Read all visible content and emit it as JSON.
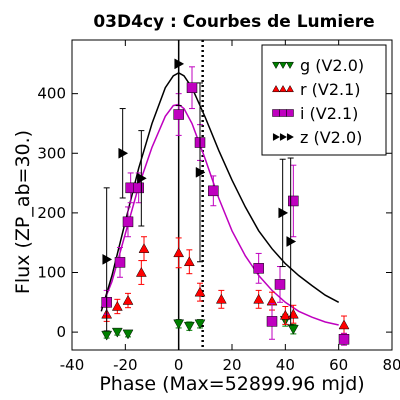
{
  "chart_data": {
    "type": "scatter",
    "title": "03D4cy : Courbes de Lumiere",
    "xlabel": "Phase (Max=52899.96 mjd)",
    "ylabel": "Flux (ZP_ab=30.)",
    "xlim": [
      -40,
      80
    ],
    "ylim": [
      -30,
      490
    ],
    "xticks": [
      -40,
      -20,
      0,
      20,
      40,
      60,
      80
    ],
    "yticks": [
      0,
      100,
      200,
      300,
      400
    ],
    "xtick_labels": [
      "-40",
      "-20",
      "0",
      "20",
      "40",
      "60",
      "80"
    ],
    "ytick_labels": [
      "0",
      "100",
      "200",
      "300",
      "400"
    ],
    "grid": false,
    "legend_position": "top-right",
    "vertical_lines": [
      {
        "x": 0,
        "style": "solid"
      },
      {
        "x": 9,
        "style": "dotted"
      }
    ],
    "series": [
      {
        "name": "g (V2.0)",
        "marker": "triangle-down",
        "color": "#008000",
        "points": [
          {
            "x": -27,
            "y": -5,
            "err": 5
          },
          {
            "x": -23,
            "y": 0,
            "err": 5
          },
          {
            "x": -19,
            "y": -3,
            "err": 5
          },
          {
            "x": 0,
            "y": 14,
            "err": 7
          },
          {
            "x": 4,
            "y": 10,
            "err": 7
          },
          {
            "x": 8,
            "y": 14,
            "err": 7
          },
          {
            "x": 40,
            "y": 20,
            "err": 10
          },
          {
            "x": 43,
            "y": 5,
            "err": 8
          }
        ]
      },
      {
        "name": "r (V2.1)",
        "marker": "triangle-up",
        "color": "#ff0000",
        "points": [
          {
            "x": -27,
            "y": 30,
            "err": 12
          },
          {
            "x": -23,
            "y": 43,
            "err": 12
          },
          {
            "x": -19,
            "y": 53,
            "err": 12
          },
          {
            "x": -14,
            "y": 100,
            "err": 20
          },
          {
            "x": -13,
            "y": 140,
            "err": 20
          },
          {
            "x": 0,
            "y": 133,
            "err": 25
          },
          {
            "x": 4,
            "y": 118,
            "err": 20
          },
          {
            "x": 8,
            "y": 67,
            "err": 15
          },
          {
            "x": 16,
            "y": 55,
            "err": 15
          },
          {
            "x": 30,
            "y": 55,
            "err": 15
          },
          {
            "x": 35,
            "y": 52,
            "err": 15
          },
          {
            "x": 40,
            "y": 28,
            "err": 15
          },
          {
            "x": 43,
            "y": 30,
            "err": 15
          },
          {
            "x": 62,
            "y": 12,
            "err": 15
          }
        ]
      },
      {
        "name": "i (V2.1)",
        "marker": "square",
        "color": "#bf00bf",
        "points": [
          {
            "x": -27,
            "y": 50,
            "err": 20
          },
          {
            "x": -22,
            "y": 117,
            "err": 25
          },
          {
            "x": -19,
            "y": 185,
            "err": 25
          },
          {
            "x": -18,
            "y": 242,
            "err": 25
          },
          {
            "x": -15,
            "y": 242,
            "err": 25
          },
          {
            "x": 0,
            "y": 365,
            "err": 35
          },
          {
            "x": 5,
            "y": 410,
            "err": 35
          },
          {
            "x": 8,
            "y": 318,
            "err": 30
          },
          {
            "x": 13,
            "y": 237,
            "err": 25
          },
          {
            "x": 30,
            "y": 107,
            "err": 25
          },
          {
            "x": 35,
            "y": 18,
            "err": 30
          },
          {
            "x": 38,
            "y": 80,
            "err": 30
          },
          {
            "x": 43,
            "y": 220,
            "err": 60
          },
          {
            "x": 62,
            "y": -12,
            "err": 10
          }
        ]
      },
      {
        "name": "z (V2.0)",
        "marker": "triangle-right",
        "color": "#000000",
        "points": [
          {
            "x": -27,
            "y": 122,
            "err": 120
          },
          {
            "x": -21,
            "y": 300,
            "err": 75
          },
          {
            "x": -14,
            "y": 258,
            "err": 80
          },
          {
            "x": 0,
            "y": 450,
            "err": 70
          },
          {
            "x": 8,
            "y": 268,
            "err": 150
          },
          {
            "x": 39,
            "y": 200,
            "err": 90
          },
          {
            "x": 42,
            "y": 152,
            "err": 140
          }
        ]
      }
    ],
    "fit_curves": [
      {
        "series": "i (V2.1)",
        "color": "#bf00bf",
        "points": [
          [
            -29,
            40
          ],
          [
            -25,
            85
          ],
          [
            -20,
            165
          ],
          [
            -15,
            245
          ],
          [
            -10,
            310
          ],
          [
            -5,
            362
          ],
          [
            -2,
            380
          ],
          [
            0,
            382
          ],
          [
            2,
            375
          ],
          [
            5,
            350
          ],
          [
            10,
            290
          ],
          [
            15,
            225
          ],
          [
            20,
            170
          ],
          [
            25,
            128
          ],
          [
            30,
            95
          ],
          [
            35,
            70
          ],
          [
            40,
            50
          ],
          [
            45,
            35
          ],
          [
            50,
            25
          ],
          [
            55,
            17
          ],
          [
            60,
            12
          ]
        ]
      },
      {
        "series": "z (V2.0)",
        "color": "#000000",
        "points": [
          [
            -29,
            35
          ],
          [
            -25,
            95
          ],
          [
            -20,
            185
          ],
          [
            -15,
            275
          ],
          [
            -10,
            350
          ],
          [
            -5,
            410
          ],
          [
            -2,
            430
          ],
          [
            0,
            435
          ],
          [
            2,
            430
          ],
          [
            5,
            410
          ],
          [
            10,
            360
          ],
          [
            15,
            305
          ],
          [
            20,
            255
          ],
          [
            25,
            210
          ],
          [
            30,
            170
          ],
          [
            35,
            140
          ],
          [
            40,
            115
          ],
          [
            45,
            95
          ],
          [
            50,
            78
          ],
          [
            55,
            62
          ],
          [
            60,
            50
          ]
        ]
      }
    ]
  }
}
